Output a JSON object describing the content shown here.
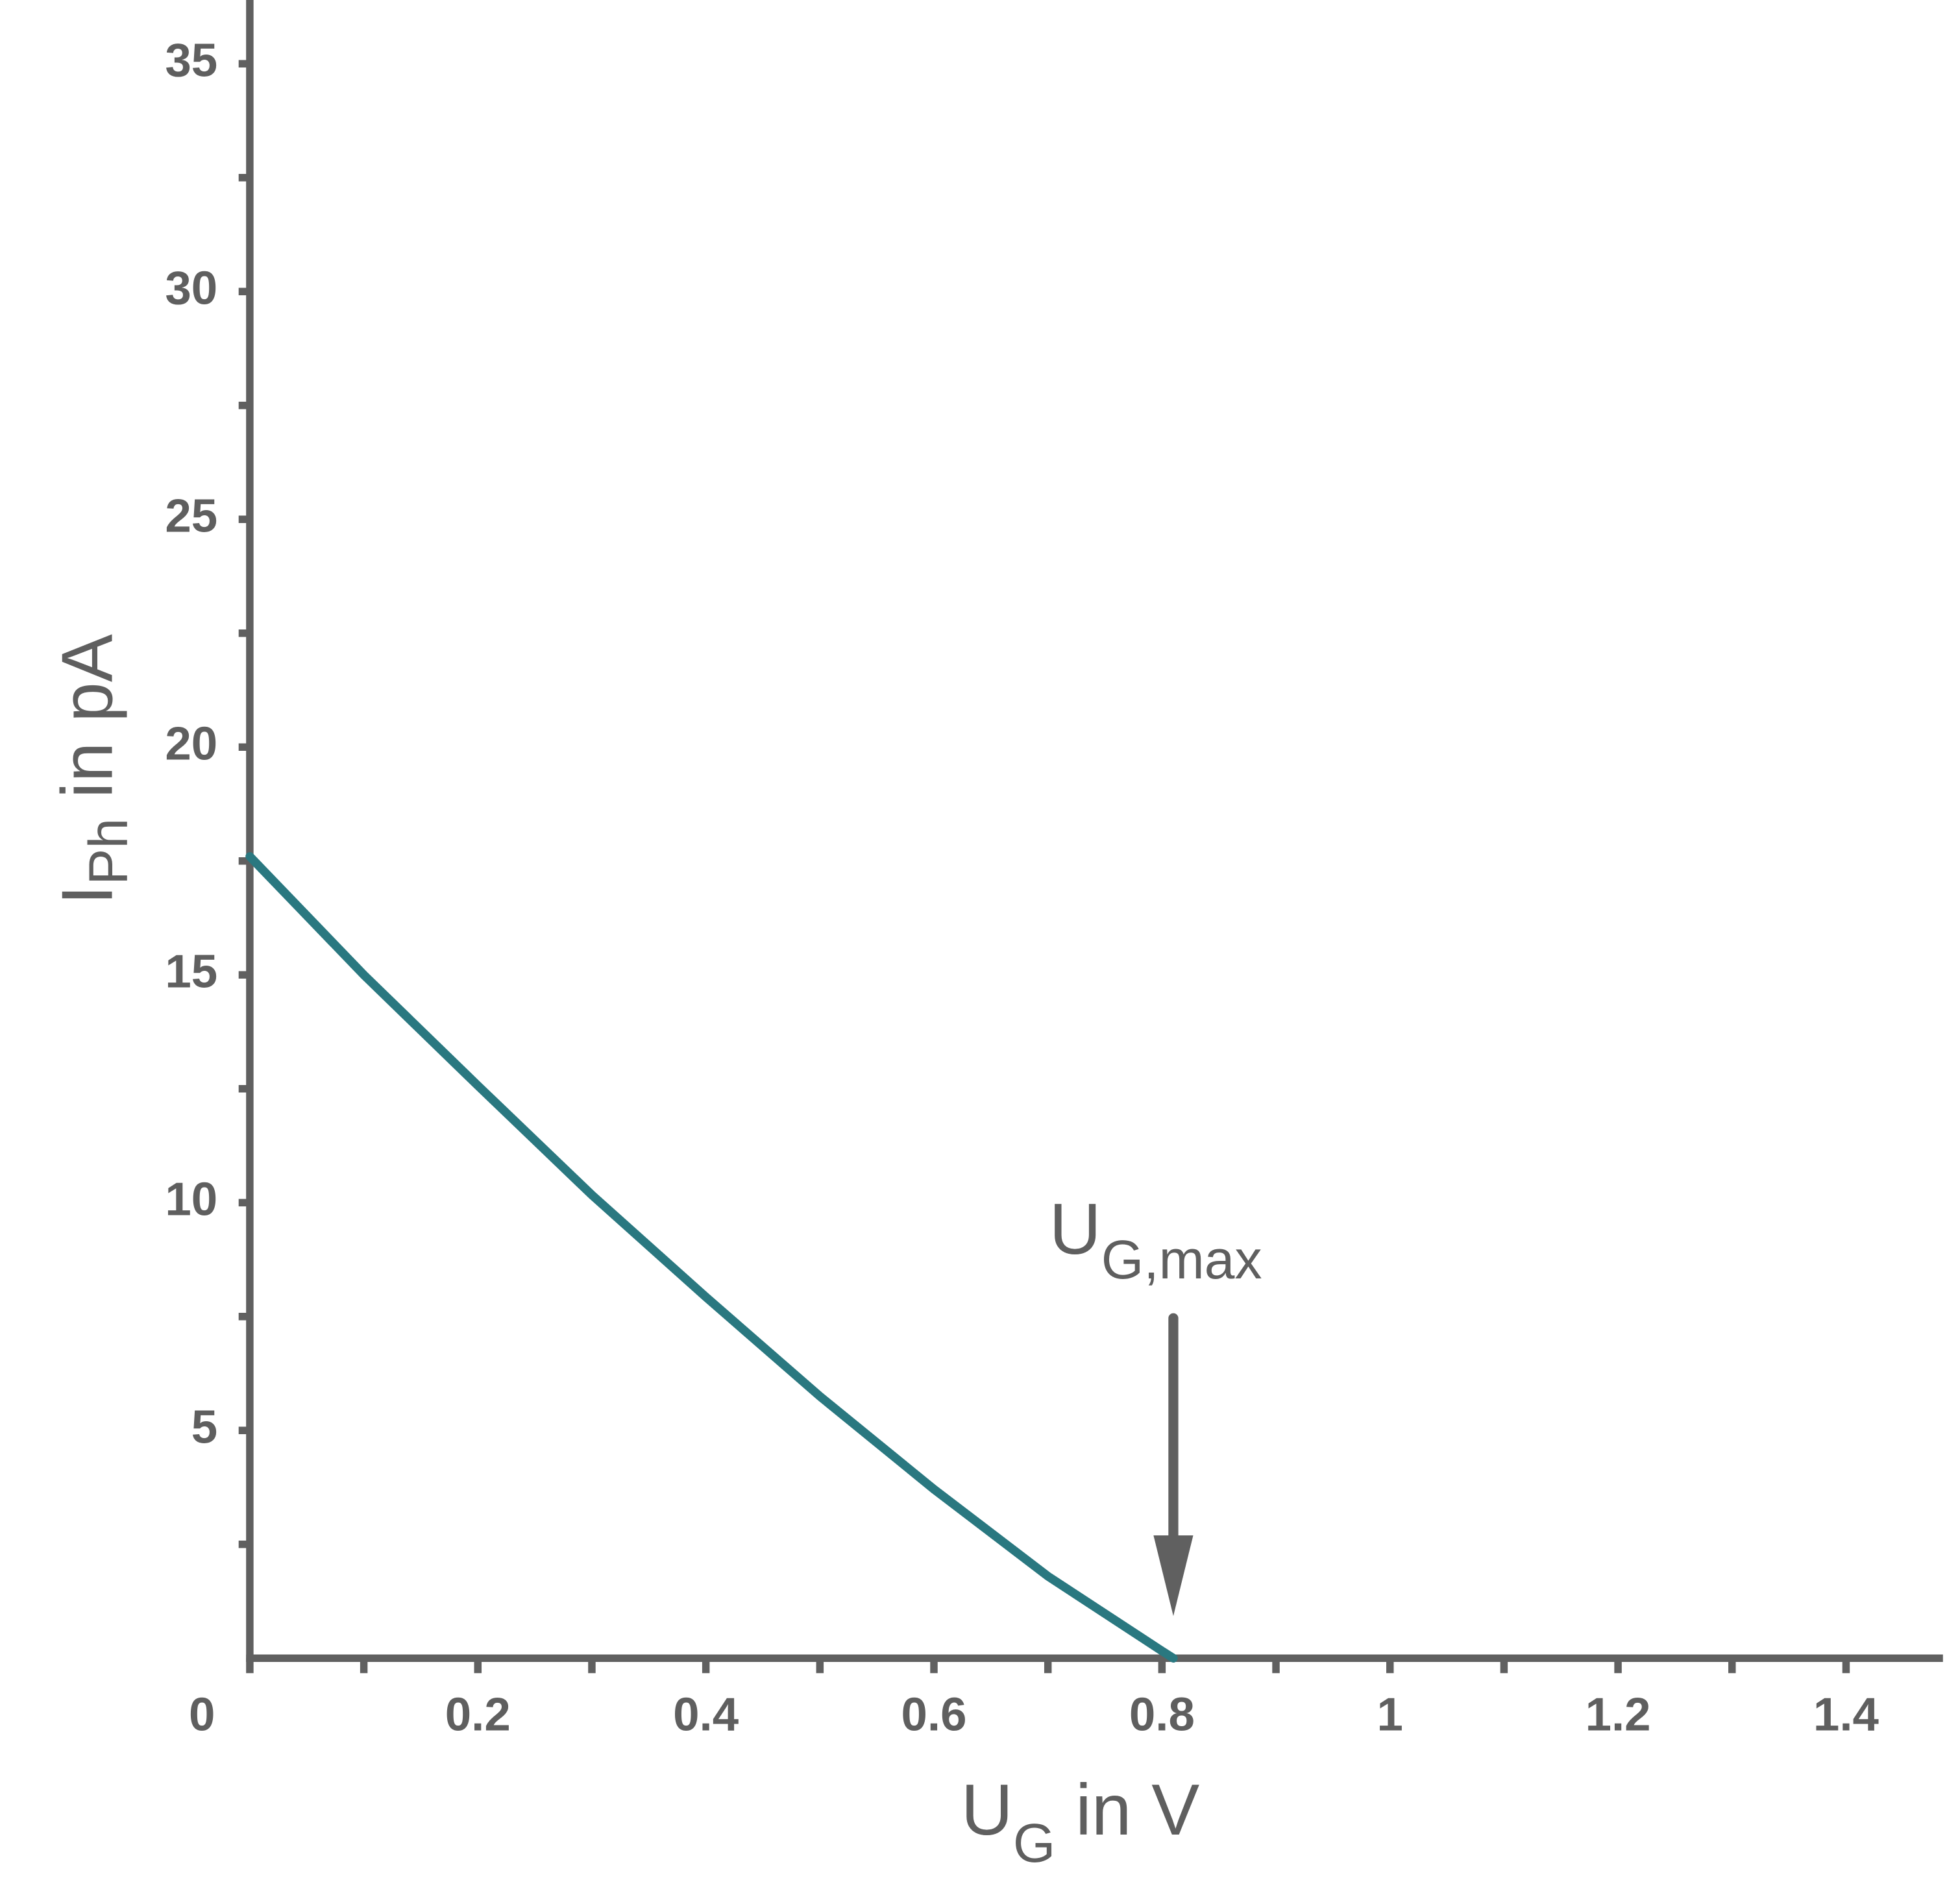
{
  "chart_data": {
    "type": "line",
    "x_label": {
      "main": "U",
      "sub": "G",
      "rest": " in V"
    },
    "y_label": {
      "main": "I",
      "sub": "Ph",
      "rest": " in pA"
    },
    "x": [
      0,
      0.1,
      0.2,
      0.3,
      0.4,
      0.5,
      0.6,
      0.7,
      0.8,
      0.81
    ],
    "series": [
      {
        "color": "#2a7880",
        "values": [
          17.6,
          15.0,
          12.57,
          10.17,
          7.93,
          5.75,
          3.71,
          1.8,
          0.16,
          0
        ]
      }
    ],
    "xlim": [
      0,
      1.485
    ],
    "ylim": [
      0,
      36.4
    ],
    "xticks": [
      0,
      0.2,
      0.4,
      0.6,
      0.8,
      1,
      1.2,
      1.4
    ],
    "x_minor_ticks": [
      0.1,
      0.3,
      0.5,
      0.7,
      0.9,
      1.1,
      1.3
    ],
    "yticks": [
      5,
      10,
      15,
      20,
      25,
      30,
      35
    ],
    "y_minor_ticks": [
      2.5,
      7.5,
      12.5,
      17.5,
      22.5,
      27.5,
      32.5
    ],
    "axis_color": "#606060",
    "annotation": {
      "main": "U",
      "sub": "G,max",
      "x": 0.81
    }
  }
}
